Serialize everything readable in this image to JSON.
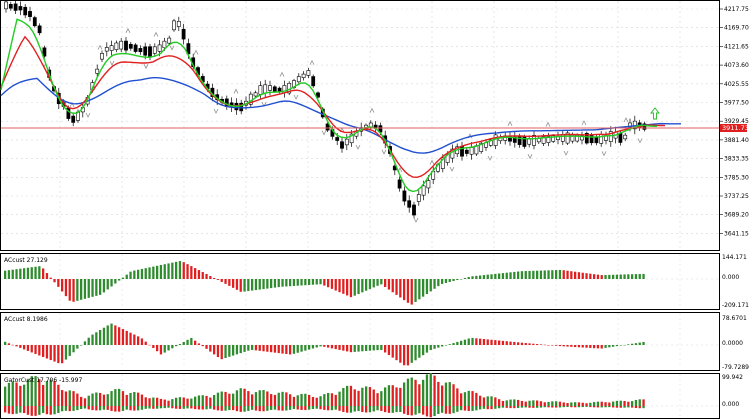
{
  "main": {
    "price_ticks": [
      "4217.75",
      "4169.70",
      "4121.65",
      "4073.60",
      "4025.55",
      "3977.50",
      "3929.45",
      "3881.40",
      "3833.35",
      "3785.30",
      "3737.25",
      "3689.20",
      "3641.15"
    ],
    "current_price": "3911.73"
  },
  "indicators": {
    "ac1": {
      "title": "ACcust 27.129",
      "ticks": [
        "144.171",
        "0.000",
        "-209.171"
      ]
    },
    "ac2": {
      "title": "ACcust 8.1986",
      "ticks": [
        "78.6701",
        "0.0000",
        "-79.7289"
      ]
    },
    "gator": {
      "title": "GatorCust 17.706 -15.997",
      "ticks": [
        "99.942",
        "0.000"
      ]
    }
  },
  "colors": {
    "up": "#2e8b2e",
    "down": "#e02020",
    "red_line": "#e02020",
    "green_line": "#22cc22",
    "blue_line": "#2050d0",
    "price_line": "#e06060",
    "arrow": "#22bb22",
    "fractal": "#909090"
  }
}
